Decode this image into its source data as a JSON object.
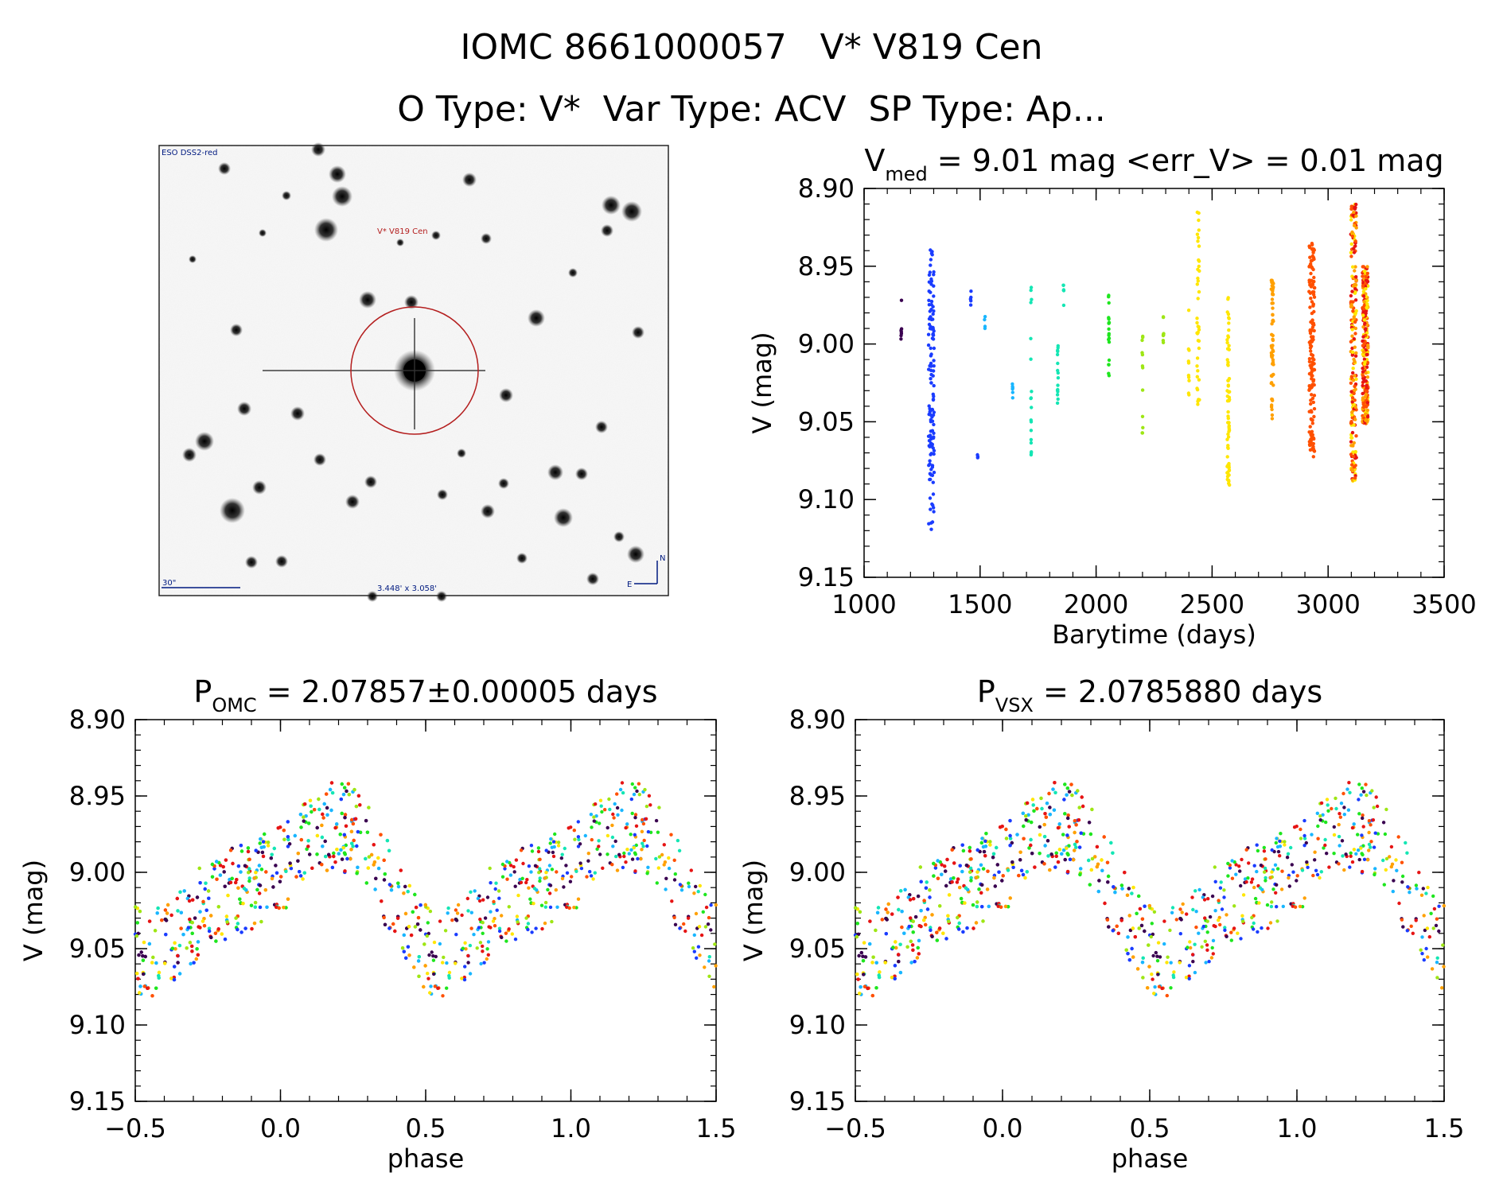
{
  "header": {
    "title": "IOMC 8661000057   V* V819 Cen",
    "subtitle": "O Type: V*  Var Type: ACV  SP Type: Ap..."
  },
  "image_panel": {
    "label_top_left": "ESO DSS2-red",
    "target_label": "V* V819 Cen",
    "scale_label": "30\"",
    "fov_label": "3.448' x 3.058'",
    "compass_n": "N",
    "compass_e": "E"
  },
  "colors": {
    "palette": [
      "#3a0050",
      "#1a3cff",
      "#19b6ff",
      "#14e6b4",
      "#1ee61e",
      "#9ee614",
      "#ffe600",
      "#ffa000",
      "#ff5000",
      "#e61414"
    ],
    "circle": "#b41e1e"
  },
  "chart_data": [
    {
      "id": "lightcurve",
      "type": "scatter",
      "title_main": "V",
      "title_sub": "med",
      "title_rest": " = 9.01 mag <err_V> = 0.01 mag",
      "xlabel": "Barytime (days)",
      "ylabel": "V (mag)",
      "xlim": [
        1000,
        3500
      ],
      "ylim": [
        8.9,
        9.15
      ],
      "y_inverted": true,
      "xticks": [
        1000,
        1500,
        2000,
        2500,
        3000,
        3500
      ],
      "xtick_labels": [
        "1000",
        "1500",
        "2000",
        "2500",
        "3000",
        "3500"
      ],
      "yticks": [
        8.9,
        8.95,
        9.0,
        9.05,
        9.1,
        9.15
      ],
      "ytick_labels": [
        "8.90",
        "8.95",
        "9.00",
        "9.05",
        "9.10",
        "9.15"
      ],
      "x_minor_step": 100,
      "y_minor_step": 0.01,
      "groups": [
        {
          "t": 1160,
          "n": 7,
          "min": 8.965,
          "max": 9.005
        },
        {
          "t": 1290,
          "n": 130,
          "min": 8.938,
          "max": 9.12
        },
        {
          "t": 1460,
          "n": 5,
          "min": 8.962,
          "max": 8.978
        },
        {
          "t": 1490,
          "n": 3,
          "min": 9.07,
          "max": 9.074
        },
        {
          "t": 1520,
          "n": 4,
          "min": 8.982,
          "max": 8.992
        },
        {
          "t": 1640,
          "n": 6,
          "min": 9.022,
          "max": 9.035
        },
        {
          "t": 1720,
          "n": 18,
          "min": 8.96,
          "max": 9.072
        },
        {
          "t": 1835,
          "n": 16,
          "min": 9.0,
          "max": 9.045
        },
        {
          "t": 1860,
          "n": 6,
          "min": 8.962,
          "max": 8.978
        },
        {
          "t": 2055,
          "n": 20,
          "min": 8.965,
          "max": 9.025
        },
        {
          "t": 2200,
          "n": 12,
          "min": 8.985,
          "max": 9.06
        },
        {
          "t": 2290,
          "n": 8,
          "min": 8.978,
          "max": 9.0
        },
        {
          "t": 2400,
          "n": 10,
          "min": 8.978,
          "max": 9.035
        },
        {
          "t": 2440,
          "n": 40,
          "min": 8.905,
          "max": 9.052
        },
        {
          "t": 2570,
          "n": 70,
          "min": 8.97,
          "max": 9.092
        },
        {
          "t": 2760,
          "n": 60,
          "min": 8.958,
          "max": 9.05
        },
        {
          "t": 2930,
          "n": 160,
          "min": 8.935,
          "max": 9.073
        },
        {
          "t": 3110,
          "n": 220,
          "min": 8.91,
          "max": 9.09
        },
        {
          "t": 3160,
          "n": 260,
          "min": 8.95,
          "max": 9.052
        }
      ]
    },
    {
      "id": "phase_omc",
      "type": "scatter",
      "title_main": "P",
      "title_sub": "OMC",
      "title_rest": " = 2.07857±0.00005 days",
      "xlabel": "phase",
      "ylabel": "V (mag)",
      "xlim": [
        -0.5,
        1.5
      ],
      "ylim": [
        8.9,
        9.15
      ],
      "y_inverted": true,
      "xticks": [
        -0.5,
        0.0,
        0.5,
        1.0,
        1.5
      ],
      "xtick_labels": [
        "−0.5",
        "0.0",
        "0.5",
        "1.0",
        "1.5"
      ],
      "yticks": [
        8.9,
        8.95,
        9.0,
        9.05,
        9.1,
        9.15
      ],
      "ytick_labels": [
        "8.90",
        "8.95",
        "9.00",
        "9.05",
        "9.10",
        "9.15"
      ],
      "x_minor_step": 0.1,
      "y_minor_step": 0.01,
      "period_days": 2.07857
    },
    {
      "id": "phase_vsx",
      "type": "scatter",
      "title_main": "P",
      "title_sub": "VSX",
      "title_rest": " = 2.0785880 days",
      "xlabel": "phase",
      "ylabel": "V (mag)",
      "xlim": [
        -0.5,
        1.5
      ],
      "ylim": [
        8.9,
        9.15
      ],
      "y_inverted": true,
      "xticks": [
        -0.5,
        0.0,
        0.5,
        1.0,
        1.5
      ],
      "xtick_labels": [
        "−0.5",
        "0.0",
        "0.5",
        "1.0",
        "1.5"
      ],
      "yticks": [
        8.9,
        8.95,
        9.0,
        9.05,
        9.1,
        9.15
      ],
      "ytick_labels": [
        "8.90",
        "8.95",
        "9.00",
        "9.05",
        "9.10",
        "9.15"
      ],
      "x_minor_step": 0.1,
      "y_minor_step": 0.01,
      "period_days": 2.078588
    }
  ]
}
